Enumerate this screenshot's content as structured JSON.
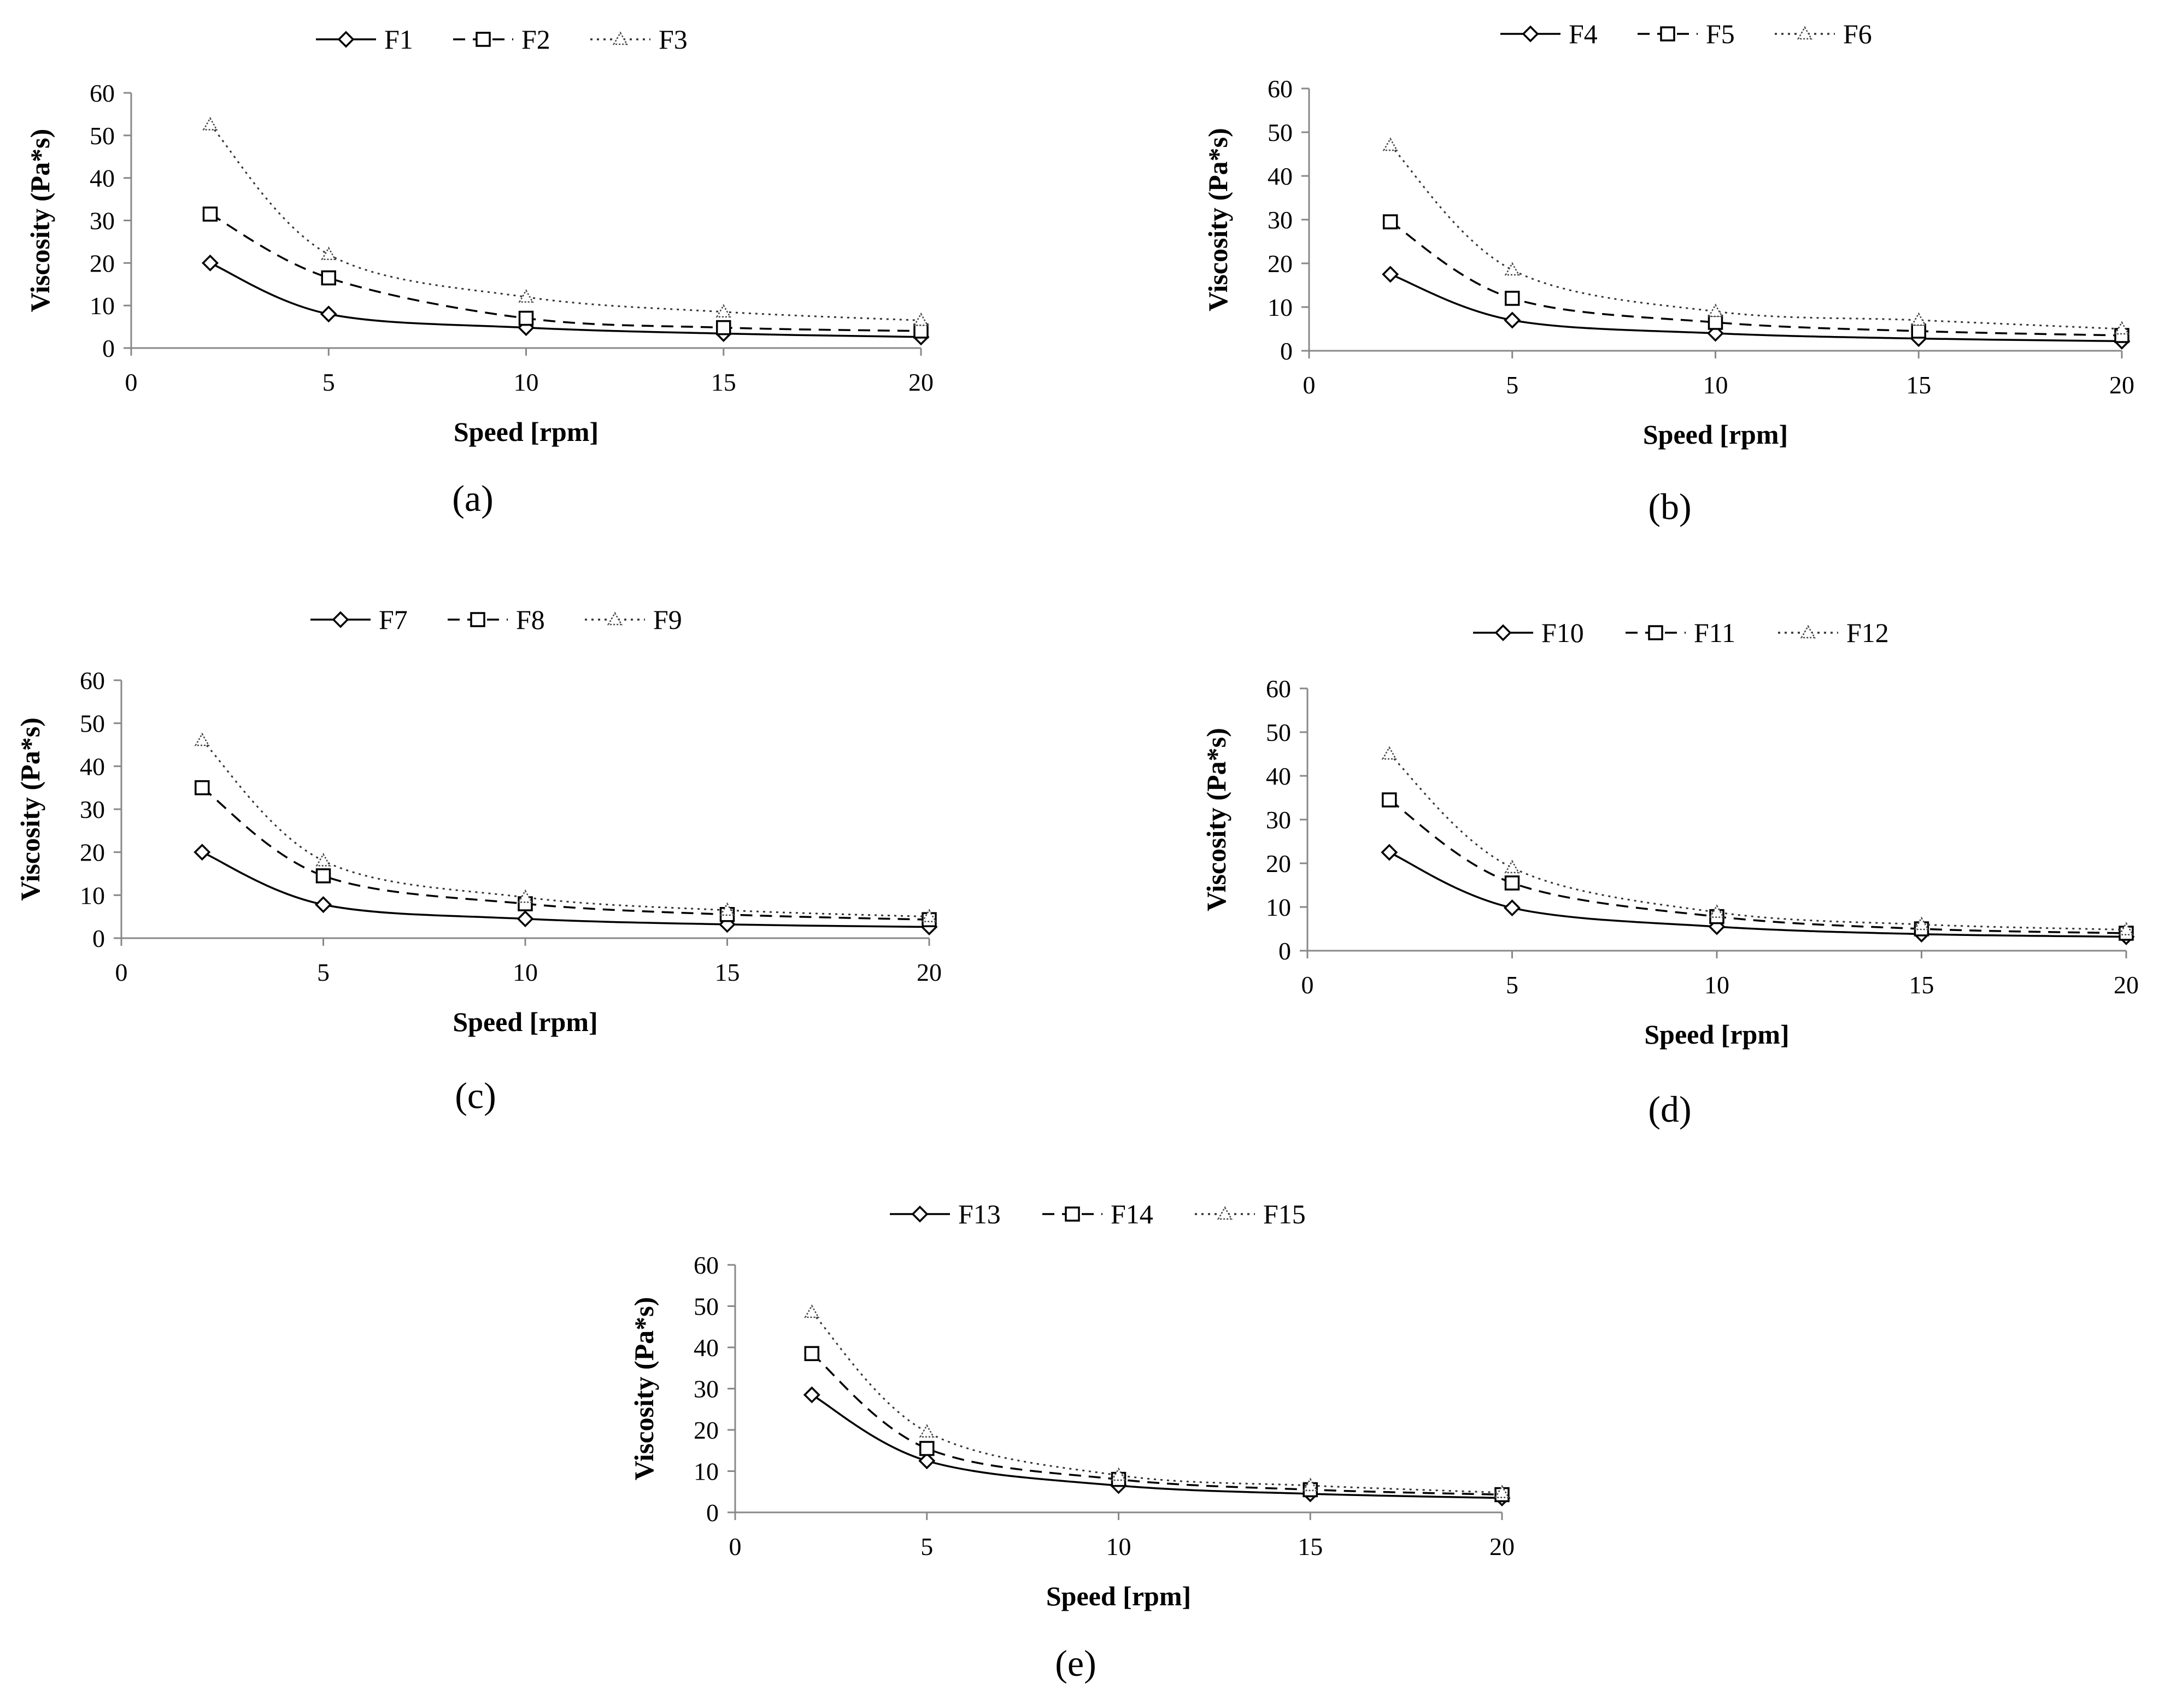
{
  "figure": {
    "panel_labels": [
      "(a)",
      "(b)",
      "(c)",
      "(d)",
      "(e)"
    ]
  },
  "chart_data": [
    {
      "type": "line",
      "panel": "a",
      "xlabel": "Speed [rpm]",
      "ylabel": "Viscosity (Pa*s)",
      "xlim": [
        0,
        20
      ],
      "ylim": [
        0,
        60
      ],
      "xticks": [
        0,
        5,
        10,
        15,
        20
      ],
      "yticks": [
        0,
        10,
        20,
        30,
        40,
        50,
        60
      ],
      "grid": false,
      "legend_position": "top",
      "x": [
        2,
        5,
        10,
        15,
        20
      ],
      "series": [
        {
          "name": "F1",
          "marker": "diamond",
          "line": "solid",
          "values": [
            20,
            8,
            4.8,
            3.4,
            2.6
          ]
        },
        {
          "name": "F2",
          "marker": "square",
          "line": "dashed",
          "values": [
            31.5,
            16.5,
            7,
            4.8,
            4
          ]
        },
        {
          "name": "F3",
          "marker": "triangle",
          "line": "dotted",
          "values": [
            52.5,
            22,
            12,
            8.5,
            6.5
          ]
        }
      ]
    },
    {
      "type": "line",
      "panel": "b",
      "xlabel": "Speed [rpm]",
      "ylabel": "Viscosity (Pa*s)",
      "xlim": [
        0,
        20
      ],
      "ylim": [
        0,
        60
      ],
      "xticks": [
        0,
        5,
        10,
        15,
        20
      ],
      "yticks": [
        0,
        10,
        20,
        30,
        40,
        50,
        60
      ],
      "grid": false,
      "legend_position": "top",
      "x": [
        2,
        5,
        10,
        15,
        20
      ],
      "series": [
        {
          "name": "F4",
          "marker": "diamond",
          "line": "solid",
          "values": [
            17.5,
            7,
            4,
            2.8,
            2.2
          ]
        },
        {
          "name": "F5",
          "marker": "square",
          "line": "dashed",
          "values": [
            29.5,
            12,
            6.5,
            4.5,
            3.5
          ]
        },
        {
          "name": "F6",
          "marker": "triangle",
          "line": "dotted",
          "values": [
            47,
            18.5,
            9,
            7,
            5
          ]
        }
      ]
    },
    {
      "type": "line",
      "panel": "c",
      "xlabel": "Speed [rpm]",
      "ylabel": "Viscosity (Pa*s)",
      "xlim": [
        0,
        20
      ],
      "ylim": [
        0,
        60
      ],
      "xticks": [
        0,
        5,
        10,
        15,
        20
      ],
      "yticks": [
        0,
        10,
        20,
        30,
        40,
        50,
        60
      ],
      "grid": false,
      "legend_position": "top",
      "x": [
        2,
        5,
        10,
        15,
        20
      ],
      "series": [
        {
          "name": "F7",
          "marker": "diamond",
          "line": "solid",
          "values": [
            20,
            7.8,
            4.5,
            3.2,
            2.6
          ]
        },
        {
          "name": "F8",
          "marker": "square",
          "line": "dashed",
          "values": [
            35,
            14.5,
            8,
            5.5,
            4.3
          ]
        },
        {
          "name": "F9",
          "marker": "triangle",
          "line": "dotted",
          "values": [
            46,
            18,
            9.5,
            6.5,
            5
          ]
        }
      ]
    },
    {
      "type": "line",
      "panel": "d",
      "xlabel": "Speed [rpm]",
      "ylabel": "Viscosity (Pa*s)",
      "xlim": [
        0,
        20
      ],
      "ylim": [
        0,
        60
      ],
      "xticks": [
        0,
        5,
        10,
        15,
        20
      ],
      "yticks": [
        0,
        10,
        20,
        30,
        40,
        50,
        60
      ],
      "grid": false,
      "legend_position": "top",
      "x": [
        2,
        5,
        10,
        15,
        20
      ],
      "series": [
        {
          "name": "F10",
          "marker": "diamond",
          "line": "solid",
          "values": [
            22.5,
            9.8,
            5.5,
            3.8,
            3.2
          ]
        },
        {
          "name": "F11",
          "marker": "square",
          "line": "dashed",
          "values": [
            34.5,
            15.5,
            7.8,
            5,
            4
          ]
        },
        {
          "name": "F12",
          "marker": "triangle",
          "line": "dotted",
          "values": [
            45,
            19,
            8.8,
            6,
            4.8
          ]
        }
      ]
    },
    {
      "type": "line",
      "panel": "e",
      "xlabel": "Speed [rpm]",
      "ylabel": "Viscosity (Pa*s)",
      "xlim": [
        0,
        20
      ],
      "ylim": [
        0,
        60
      ],
      "xticks": [
        0,
        5,
        10,
        15,
        20
      ],
      "yticks": [
        0,
        10,
        20,
        30,
        40,
        50,
        60
      ],
      "grid": false,
      "legend_position": "top",
      "x": [
        2,
        5,
        10,
        15,
        20
      ],
      "series": [
        {
          "name": "F13",
          "marker": "diamond",
          "line": "solid",
          "values": [
            28.5,
            12.5,
            6.5,
            4.5,
            3.5
          ]
        },
        {
          "name": "F14",
          "marker": "square",
          "line": "dashed",
          "values": [
            38.5,
            15.5,
            8,
            5.5,
            4.3
          ]
        },
        {
          "name": "F15",
          "marker": "triangle",
          "line": "dotted",
          "values": [
            48.5,
            19.5,
            9,
            6.5,
            4.8
          ]
        }
      ]
    }
  ]
}
